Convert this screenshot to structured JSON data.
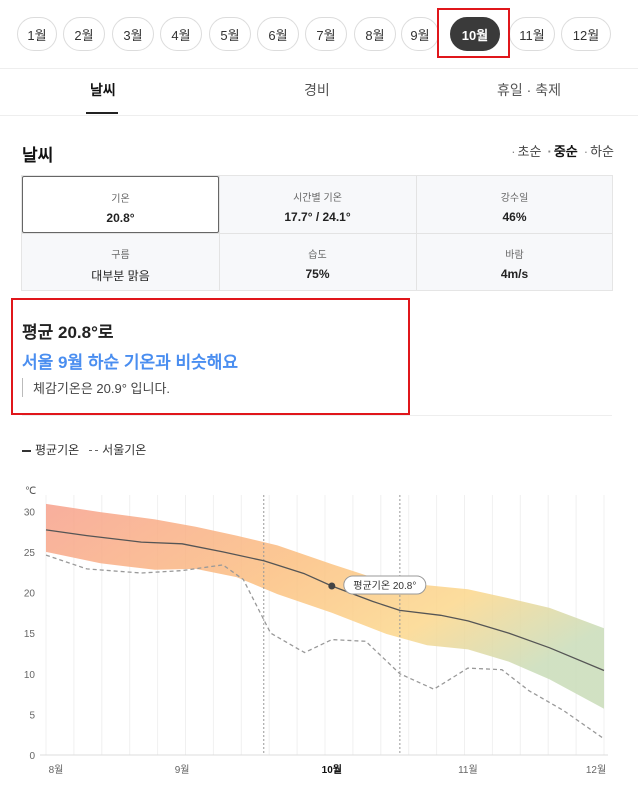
{
  "months": [
    "1월",
    "2월",
    "3월",
    "4월",
    "5월",
    "6월",
    "7월",
    "8월",
    "9월",
    "10월",
    "11월",
    "12월"
  ],
  "selected_month": "10월",
  "tabs": [
    "날씨",
    "경비",
    "휴일 · 축제"
  ],
  "active_tab": "날씨",
  "section_title": "날씨",
  "period_options": [
    "초순",
    "중순",
    "하순"
  ],
  "selected_period": "중순",
  "stats": [
    {
      "label": "기온",
      "value": "20.8°"
    },
    {
      "label": "시간별 기온",
      "value": "17.7° / 24.1°"
    },
    {
      "label": "강수일",
      "value": "46%"
    },
    {
      "label": "구름",
      "value": "대부분 맑음"
    },
    {
      "label": "습도",
      "value": "75%"
    },
    {
      "label": "바람",
      "value": "4m/s"
    }
  ],
  "summary": {
    "line1": "평균 20.8°로",
    "line2": "서울 9월 하순 기온과 비슷해요",
    "line3": "체감기온은 20.9° 입니다."
  },
  "legend": {
    "avg": "평균기온",
    "seoul": "서울기온"
  },
  "chart_data": {
    "type": "line",
    "unit": "℃",
    "ylim": [
      0,
      30
    ],
    "yticks": [
      0,
      5,
      10,
      15,
      20,
      25,
      30
    ],
    "x_range": [
      7.9,
      12.0
    ],
    "xticks": [
      {
        "label": "8월",
        "x": 7.9
      },
      {
        "label": "9월",
        "x": 8.9
      },
      {
        "label": "10월",
        "x": 10.0
      },
      {
        "label": "11월",
        "x": 11.0
      },
      {
        "label": "12월",
        "x": 12.0
      }
    ],
    "period_markers": [
      9.5,
      10.5
    ],
    "highlight": {
      "x": 10.0,
      "value": 20.8,
      "label": "평균기온 20.8°"
    },
    "series": [
      {
        "name": "평균기온",
        "style": "solid",
        "color": "#555555",
        "points": [
          [
            7.9,
            27.7
          ],
          [
            8.2,
            27.0
          ],
          [
            8.6,
            26.2
          ],
          [
            8.9,
            26.0
          ],
          [
            9.2,
            25.0
          ],
          [
            9.5,
            23.9
          ],
          [
            9.8,
            22.3
          ],
          [
            10.0,
            20.8
          ],
          [
            10.3,
            18.9
          ],
          [
            10.5,
            17.8
          ],
          [
            10.8,
            17.2
          ],
          [
            11.0,
            16.5
          ],
          [
            11.3,
            15.0
          ],
          [
            11.6,
            13.2
          ],
          [
            12.0,
            10.4
          ]
        ]
      },
      {
        "name": "서울기온",
        "style": "dashed",
        "color": "#999999",
        "points": [
          [
            7.9,
            24.6
          ],
          [
            8.2,
            22.9
          ],
          [
            8.6,
            22.4
          ],
          [
            8.9,
            22.7
          ],
          [
            9.2,
            23.4
          ],
          [
            9.35,
            21.6
          ],
          [
            9.55,
            15.0
          ],
          [
            9.8,
            12.6
          ],
          [
            10.0,
            14.2
          ],
          [
            10.25,
            14.0
          ],
          [
            10.5,
            10.0
          ],
          [
            10.75,
            8.1
          ],
          [
            11.0,
            10.7
          ],
          [
            11.25,
            10.5
          ],
          [
            11.45,
            7.9
          ],
          [
            11.7,
            5.5
          ],
          [
            12.0,
            2.0
          ]
        ]
      }
    ],
    "band": {
      "x": [
        7.9,
        8.3,
        8.7,
        9.0,
        9.3,
        9.6,
        10.0,
        10.4,
        10.7,
        11.0,
        11.3,
        11.6,
        12.0
      ],
      "upper": [
        30.9,
        29.9,
        29.0,
        28.1,
        27.0,
        25.8,
        23.5,
        21.3,
        20.9,
        20.4,
        19.3,
        18.1,
        15.6
      ],
      "lower": [
        25.0,
        23.6,
        22.8,
        22.9,
        21.9,
        19.8,
        17.5,
        14.9,
        13.5,
        13.0,
        11.5,
        9.3,
        5.7
      ]
    }
  }
}
